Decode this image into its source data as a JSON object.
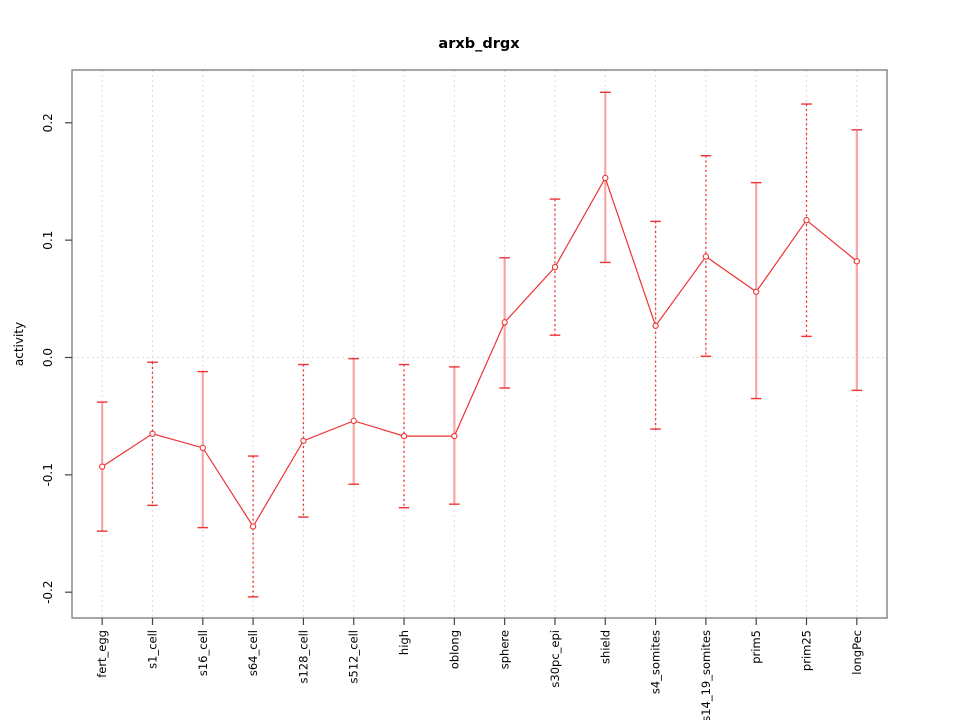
{
  "chart_data": {
    "type": "line",
    "title": "arxb_drgx",
    "xlabel": "",
    "ylabel": "activity",
    "categories": [
      "fert_egg",
      "s1_cell",
      "s16_cell",
      "s64_cell",
      "s128_cell",
      "s512_cell",
      "high",
      "oblong",
      "sphere",
      "s30pc_epi",
      "shield",
      "s4_somites",
      "s14_19_somites",
      "prim5",
      "prim25",
      "longPec"
    ],
    "series": [
      {
        "name": "activity",
        "values": [
          -0.093,
          -0.065,
          -0.077,
          -0.144,
          -0.071,
          -0.054,
          -0.067,
          -0.067,
          0.03,
          0.077,
          0.153,
          0.027,
          0.086,
          0.056,
          0.117,
          0.082
        ],
        "error_lower": [
          -0.148,
          -0.126,
          -0.145,
          -0.204,
          -0.136,
          -0.108,
          -0.128,
          -0.125,
          -0.026,
          0.019,
          0.081,
          -0.061,
          0.001,
          -0.035,
          0.018,
          -0.028
        ],
        "error_upper": [
          -0.038,
          -0.004,
          -0.012,
          -0.084,
          -0.006,
          -0.001,
          -0.006,
          -0.008,
          0.085,
          0.135,
          0.226,
          0.116,
          0.172,
          0.149,
          0.216,
          0.194
        ],
        "error_bar_styles": [
          "solid",
          "dotted",
          "solid",
          "dotted",
          "dotted",
          "solid",
          "dotted",
          "solid",
          "solid",
          "dotted",
          "solid",
          "dotted",
          "dotted",
          "solid",
          "dotted",
          "solid"
        ]
      }
    ],
    "marker": "open-circle",
    "yticks": [
      "-0.2",
      "-0.1",
      "0.0",
      "0.1",
      "0.2"
    ],
    "ytick_values": [
      -0.2,
      -0.1,
      0.0,
      0.1,
      0.2
    ],
    "ylim": [
      -0.222,
      0.245
    ],
    "grid": {
      "vertical_at_categories": true,
      "horizontal_at_zero": true,
      "style": "dotted"
    },
    "legend_position": "none",
    "colors": {
      "line": "#ee3333",
      "error_bar_solid": "#f7a6a6",
      "grid": "#dcdcdc",
      "box": "#808080",
      "tick": "#444444",
      "text": "#000000"
    }
  }
}
